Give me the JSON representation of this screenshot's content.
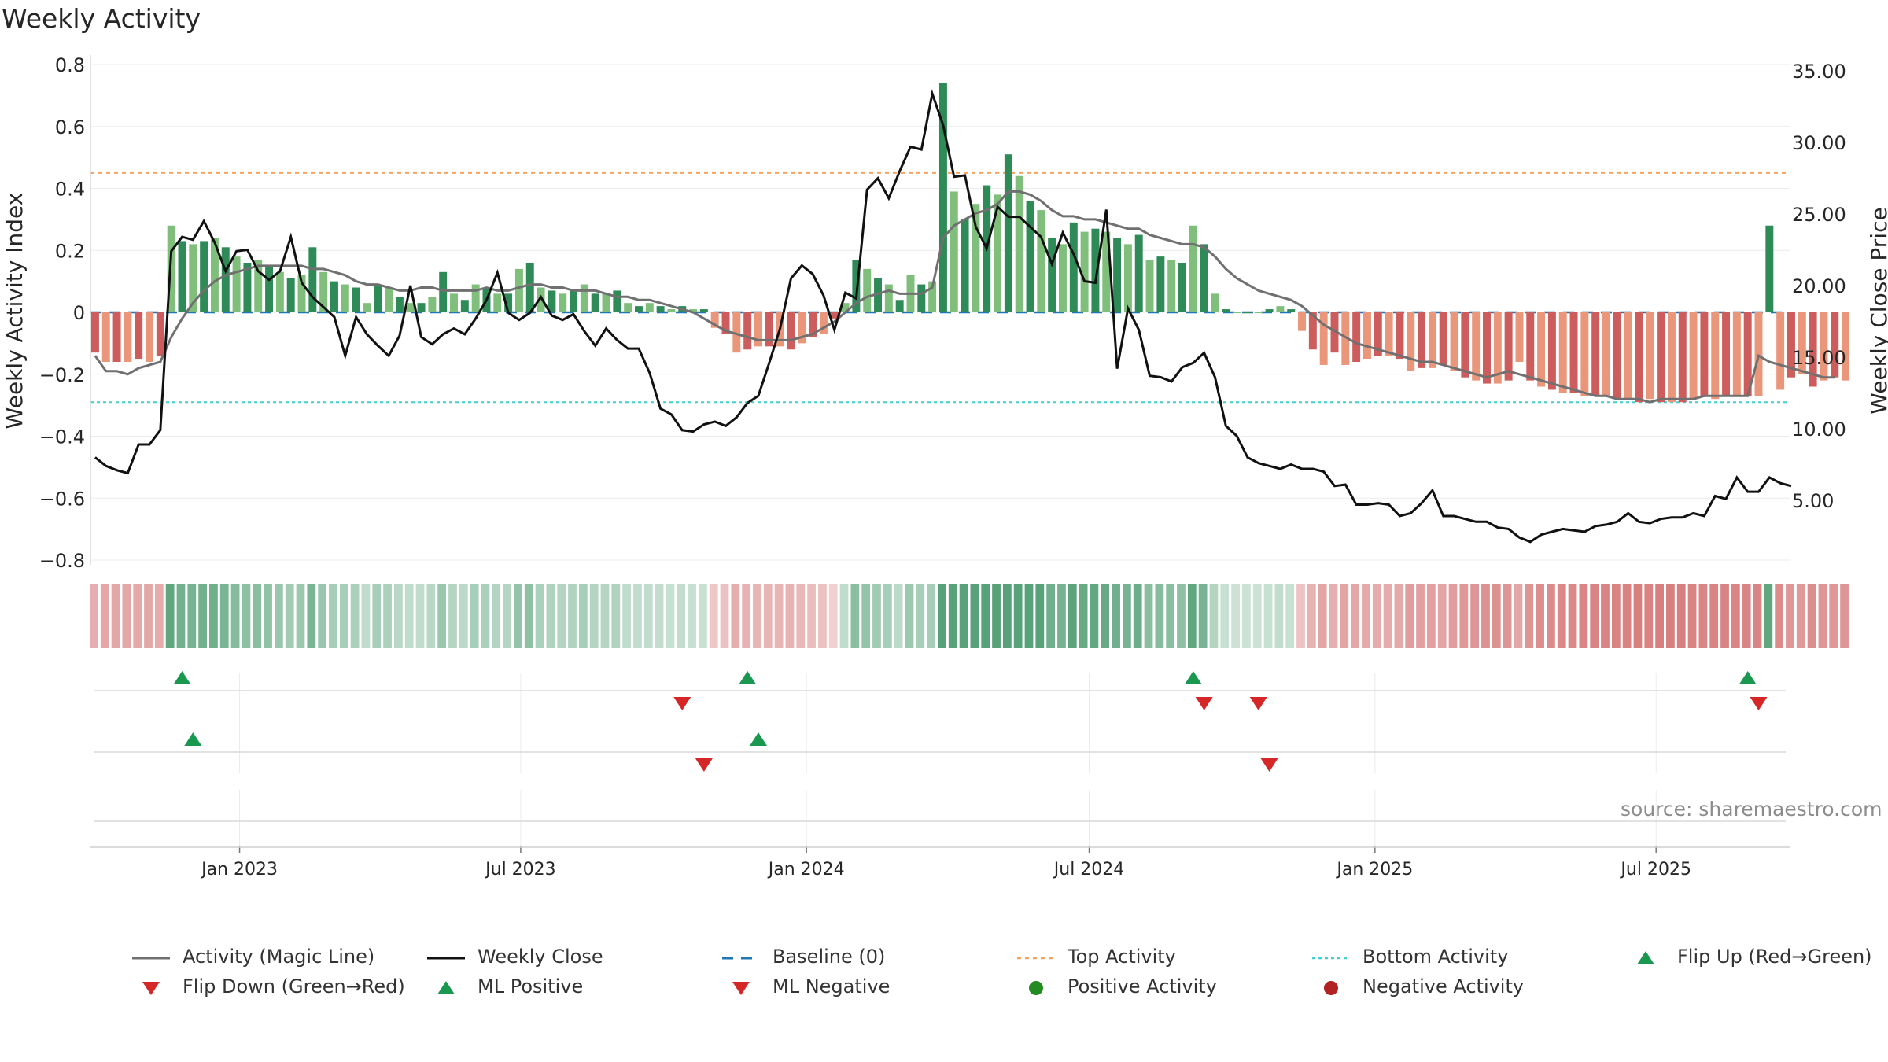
{
  "title": "Weekly Activity",
  "source": "source: sharemaestro.com",
  "colors": {
    "strong_green": "#2e8b57",
    "light_green": "#7fbf7b",
    "strong_red": "#cd5c5c",
    "light_red": "#e9967a",
    "magic_line": "#707070",
    "close_line": "#111111",
    "baseline": "#1f77b4",
    "top_line": "#f4a460",
    "bottom_line": "#40d0d0",
    "flip_up": "#1a9850",
    "flip_down": "#d62728",
    "pos_dot": "#228b22",
    "neg_dot": "#b22222"
  },
  "legend": [
    {
      "label": "Activity (Magic Line)",
      "icon": "line-solid-gray"
    },
    {
      "label": "Weekly Close",
      "icon": "line-solid-black"
    },
    {
      "label": "Baseline (0)",
      "icon": "line-dashed-blue"
    },
    {
      "label": "Top Activity",
      "icon": "line-dotted-orange"
    },
    {
      "label": "Bottom Activity",
      "icon": "line-dotted-cyan"
    },
    {
      "label": "Flip Up (Red→Green)",
      "icon": "triangle-up-green"
    },
    {
      "label": "Flip Down (Green→Red)",
      "icon": "triangle-down-red"
    },
    {
      "label": "ML Positive",
      "icon": "triangle-up-green"
    },
    {
      "label": "ML Negative",
      "icon": "triangle-down-red"
    },
    {
      "label": "Positive Activity",
      "icon": "circle-green"
    },
    {
      "label": "Negative Activity",
      "icon": "circle-red"
    }
  ],
  "chart_data": {
    "type": "bar",
    "title": "Weekly Activity",
    "ylabel_left": "Weekly Activity Index",
    "ylabel_right": "Weekly Close Price",
    "ylim_left": [
      -0.8,
      0.8
    ],
    "yticks_left": [
      "0.8",
      "0.6",
      "0.4",
      "0.2",
      "0",
      "−0.2",
      "−0.4",
      "−0.6",
      "−0.8"
    ],
    "ylim_right": [
      0,
      35
    ],
    "yticks_right": [
      "35.00",
      "30.00",
      "25.00",
      "20.00",
      "15.00",
      "10.00",
      "5.00"
    ],
    "x_range": [
      "2022-09-27",
      "2025-09-25"
    ],
    "x_ticks": [
      "Jan 2023",
      "Jul 2023",
      "Jan 2024",
      "Jul 2024",
      "Jan 2025",
      "Jul 2025"
    ],
    "top_activity": 0.45,
    "bottom_activity": -0.29,
    "baseline": 0,
    "grid": true,
    "legend_position": "bottom",
    "weekly_activity": {
      "start_week": "2022-09-30",
      "values": [
        -0.13,
        -0.16,
        -0.16,
        -0.16,
        -0.15,
        -0.16,
        -0.14,
        0.28,
        0.23,
        0.22,
        0.23,
        0.24,
        0.21,
        0.18,
        0.16,
        0.17,
        0.15,
        0.13,
        0.11,
        0.12,
        0.21,
        0.13,
        0.1,
        0.09,
        0.08,
        0.03,
        0.09,
        0.08,
        0.05,
        0.03,
        0.03,
        0.05,
        0.13,
        0.06,
        0.04,
        0.09,
        0.08,
        0.06,
        0.06,
        0.14,
        0.16,
        0.08,
        0.07,
        0.06,
        0.07,
        0.09,
        0.06,
        0.06,
        0.07,
        0.03,
        0.02,
        0.03,
        0.02,
        0.01,
        0.02,
        0.01,
        0.01,
        -0.05,
        -0.07,
        -0.13,
        -0.12,
        -0.11,
        -0.11,
        -0.11,
        -0.12,
        -0.1,
        -0.08,
        -0.07,
        -0.02,
        0.03,
        0.17,
        0.14,
        0.11,
        0.09,
        0.04,
        0.12,
        0.09,
        0.1,
        0.74,
        0.39,
        0.3,
        0.35,
        0.41,
        0.38,
        0.51,
        0.44,
        0.36,
        0.33,
        0.24,
        0.22,
        0.29,
        0.26,
        0.27,
        0.26,
        0.24,
        0.22,
        0.25,
        0.17,
        0.18,
        0.17,
        0.16,
        0.28,
        0.22,
        0.06,
        0.01,
        0.0,
        0.0,
        0.0,
        0.01,
        0.02,
        0.01,
        -0.06,
        -0.12,
        -0.17,
        -0.13,
        -0.17,
        -0.16,
        -0.15,
        -0.14,
        -0.14,
        -0.15,
        -0.19,
        -0.18,
        -0.18,
        -0.17,
        -0.19,
        -0.21,
        -0.22,
        -0.23,
        -0.23,
        -0.22,
        -0.16,
        -0.22,
        -0.24,
        -0.25,
        -0.26,
        -0.26,
        -0.27,
        -0.27,
        -0.27,
        -0.28,
        -0.28,
        -0.29,
        -0.28,
        -0.29,
        -0.29,
        -0.29,
        -0.28,
        -0.27,
        -0.28,
        -0.27,
        -0.27,
        -0.27,
        -0.27,
        0.28,
        -0.25,
        -0.21,
        -0.2,
        -0.24,
        -0.22,
        -0.21,
        -0.22
      ],
      "strength": "alternating strong/weak shading within each sign"
    },
    "series": [
      {
        "name": "Activity (Magic Line)",
        "start_week": "2022-09-30",
        "values": [
          -0.14,
          -0.19,
          -0.19,
          -0.2,
          -0.18,
          -0.17,
          -0.16,
          -0.08,
          -0.02,
          0.03,
          0.07,
          0.1,
          0.12,
          0.13,
          0.14,
          0.15,
          0.15,
          0.15,
          0.15,
          0.15,
          0.14,
          0.14,
          0.13,
          0.12,
          0.1,
          0.09,
          0.09,
          0.08,
          0.07,
          0.07,
          0.08,
          0.08,
          0.07,
          0.07,
          0.07,
          0.07,
          0.08,
          0.07,
          0.07,
          0.08,
          0.09,
          0.09,
          0.08,
          0.08,
          0.07,
          0.07,
          0.07,
          0.06,
          0.05,
          0.05,
          0.04,
          0.04,
          0.03,
          0.02,
          0.01,
          0.0,
          -0.02,
          -0.04,
          -0.06,
          -0.07,
          -0.08,
          -0.09,
          -0.09,
          -0.09,
          -0.09,
          -0.08,
          -0.07,
          -0.05,
          -0.03,
          0.0,
          0.03,
          0.05,
          0.06,
          0.07,
          0.06,
          0.06,
          0.06,
          0.08,
          0.24,
          0.28,
          0.3,
          0.32,
          0.33,
          0.35,
          0.39,
          0.39,
          0.38,
          0.36,
          0.33,
          0.31,
          0.31,
          0.3,
          0.3,
          0.29,
          0.28,
          0.27,
          0.27,
          0.25,
          0.24,
          0.23,
          0.22,
          0.22,
          0.21,
          0.18,
          0.14,
          0.11,
          0.09,
          0.07,
          0.06,
          0.05,
          0.04,
          0.02,
          -0.01,
          -0.04,
          -0.06,
          -0.08,
          -0.1,
          -0.11,
          -0.12,
          -0.13,
          -0.14,
          -0.15,
          -0.16,
          -0.16,
          -0.17,
          -0.18,
          -0.19,
          -0.2,
          -0.21,
          -0.2,
          -0.19,
          -0.2,
          -0.21,
          -0.22,
          -0.23,
          -0.24,
          -0.25,
          -0.26,
          -0.27,
          -0.27,
          -0.28,
          -0.28,
          -0.28,
          -0.29,
          -0.28,
          -0.28,
          -0.28,
          -0.28,
          -0.27,
          -0.27,
          -0.27,
          -0.27,
          -0.27,
          -0.14,
          -0.16,
          -0.17,
          -0.18,
          -0.19,
          -0.2,
          -0.21,
          -0.21
        ]
      },
      {
        "name": "Weekly Close",
        "axis": "right",
        "start_week": "2022-09-30",
        "values": [
          8.0,
          7.4,
          7.1,
          6.9,
          8.9,
          8.9,
          9.9,
          22.4,
          23.4,
          23.2,
          24.5,
          23.0,
          21.0,
          22.4,
          22.5,
          21.0,
          20.4,
          21.0,
          23.4,
          20.2,
          19.2,
          18.5,
          17.8,
          15.1,
          17.8,
          16.6,
          15.8,
          15.1,
          16.5,
          20.0,
          16.4,
          15.9,
          16.6,
          17.0,
          16.6,
          17.7,
          19.0,
          20.9,
          18.1,
          17.6,
          18.1,
          19.2,
          17.9,
          17.6,
          18.0,
          16.8,
          15.8,
          17.0,
          16.2,
          15.6,
          15.6,
          13.9,
          11.4,
          11.0,
          9.9,
          9.8,
          10.3,
          10.5,
          10.2,
          10.8,
          11.8,
          12.3,
          14.6,
          17.0,
          20.5,
          21.4,
          20.8,
          19.3,
          16.9,
          19.5,
          19.1,
          26.7,
          27.5,
          26.1,
          28.0,
          29.7,
          29.5,
          33.4,
          31.2,
          27.6,
          27.7,
          24.1,
          22.6,
          25.5,
          24.8,
          24.8,
          24.1,
          23.4,
          21.5,
          23.7,
          22.2,
          20.3,
          20.2,
          25.3,
          14.2,
          18.4,
          16.9,
          13.7,
          13.6,
          13.3,
          14.3,
          14.6,
          15.3,
          13.6,
          10.2,
          9.5,
          8.0,
          7.6,
          7.4,
          7.2,
          7.5,
          7.2,
          7.2,
          7.0,
          6.0,
          6.1,
          4.7,
          4.7,
          4.8,
          4.7,
          3.9,
          4.1,
          4.8,
          5.7,
          3.9,
          3.9,
          3.7,
          3.5,
          3.5,
          3.1,
          3.0,
          2.4,
          2.1,
          2.6,
          2.8,
          3.0,
          2.9,
          2.8,
          3.2,
          3.3,
          3.5,
          4.1,
          3.5,
          3.4,
          3.7,
          3.8,
          3.8,
          4.1,
          3.9,
          5.3,
          5.1,
          6.6,
          5.6,
          5.6,
          6.6,
          6.2,
          6.0
        ]
      }
    ],
    "state_strip": "per-week color band: green during positive activity, red during negative activity",
    "flip_up_dates": [
      "2022-11-25",
      "2023-11-24",
      "2024-09-06",
      "2025-08-29"
    ],
    "flip_down_dates": [
      "2023-10-13",
      "2024-09-13",
      "2024-10-18",
      "2025-09-05"
    ],
    "ml_positive_dates": [
      "2022-12-02",
      "2023-12-01"
    ],
    "ml_negative_dates": [
      "2023-10-27",
      "2024-10-25"
    ]
  }
}
